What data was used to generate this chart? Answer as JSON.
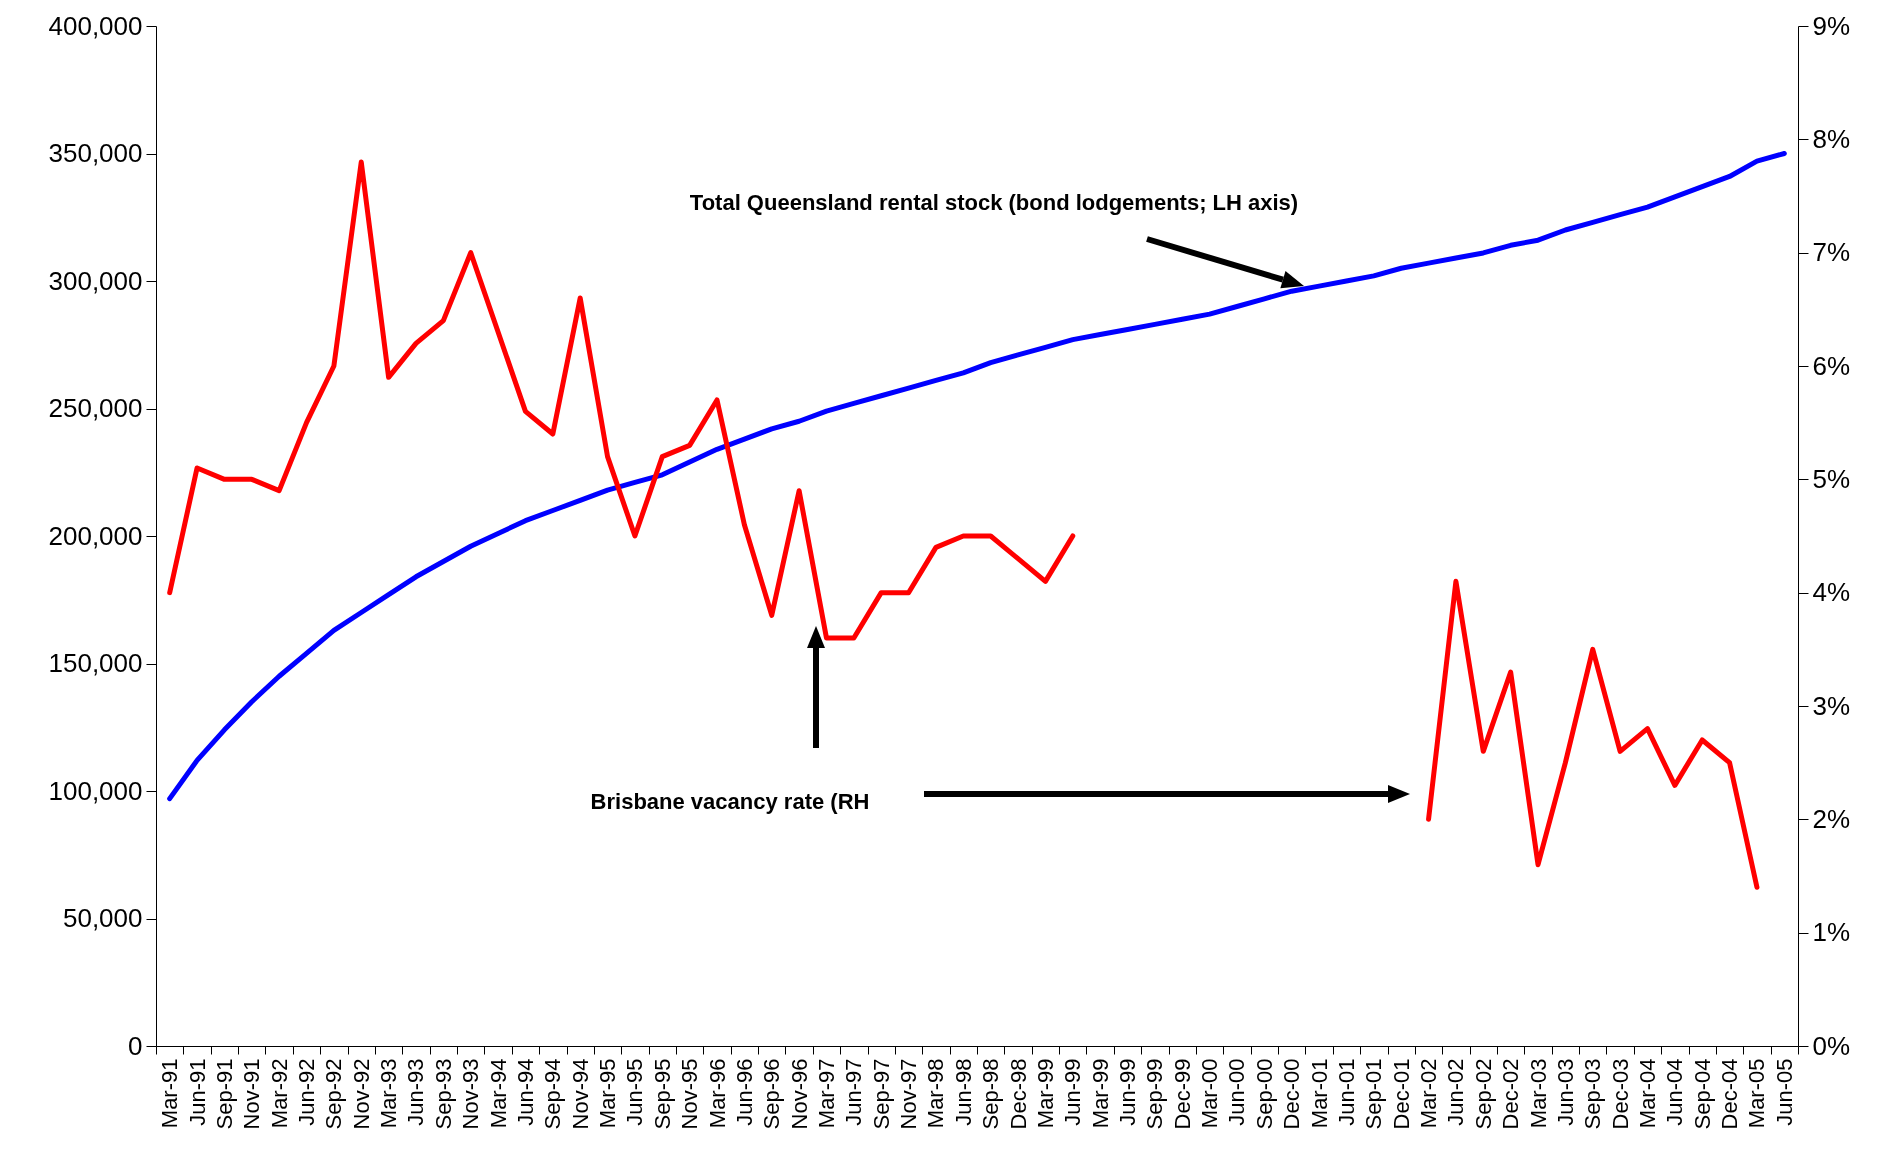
{
  "chart_data": {
    "type": "line",
    "categories": [
      "Mar-91",
      "Jun-91",
      "Sep-91",
      "Nov-91",
      "Mar-92",
      "Jun-92",
      "Sep-92",
      "Nov-92",
      "Mar-93",
      "Jun-93",
      "Sep-93",
      "Nov-93",
      "Mar-94",
      "Jun-94",
      "Sep-94",
      "Nov-94",
      "Mar-95",
      "Jun-95",
      "Sep-95",
      "Nov-95",
      "Mar-96",
      "Jun-96",
      "Sep-96",
      "Nov-96",
      "Mar-97",
      "Jun-97",
      "Sep-97",
      "Nov-97",
      "Mar-98",
      "Jun-98",
      "Sep-98",
      "Dec-98",
      "Mar-99",
      "Jun-99",
      "Mar-99",
      "Jun-99",
      "Sep-99",
      "Dec-99",
      "Mar-00",
      "Jun-00",
      "Sep-00",
      "Dec-00",
      "Mar-01",
      "Jun-01",
      "Sep-01",
      "Dec-01",
      "Mar-02",
      "Jun-02",
      "Sep-02",
      "Dec-02",
      "Mar-03",
      "Jun-03",
      "Sep-03",
      "Dec-03",
      "Mar-04",
      "Jun-04",
      "Sep-04",
      "Dec-04",
      "Mar-05",
      "Jun-05"
    ],
    "series": [
      {
        "color": "#0000ff",
        "values": [
          97000,
          112000,
          124000,
          135000,
          145000,
          154000,
          163000,
          170000,
          177000,
          184000,
          190000,
          196000,
          201000,
          206000,
          210000,
          214000,
          218000,
          221000,
          224000,
          229000,
          234000,
          238000,
          242000,
          245000,
          249000,
          252000,
          255000,
          258000,
          261000,
          264000,
          268000,
          271000,
          274000,
          277000,
          279000,
          281000,
          283000,
          285000,
          287000,
          290000,
          293000,
          296000,
          298000,
          300000,
          302000,
          305000,
          307000,
          309000,
          311000,
          314000,
          316000,
          320000,
          323000,
          326000,
          329000,
          333000,
          337000,
          341000,
          347000,
          350000
        ]
      },
      {
        "color": "#ff0000",
        "axis": "y2",
        "values": [
          4.0,
          5.1,
          5.0,
          5.0,
          4.9,
          5.5,
          6.0,
          7.8,
          5.9,
          6.2,
          6.4,
          7.0,
          6.3,
          5.6,
          5.4,
          6.6,
          5.2,
          4.5,
          5.2,
          5.3,
          5.7,
          4.6,
          3.8,
          4.9,
          3.6,
          3.6,
          4.0,
          4.0,
          4.4,
          4.5,
          4.5,
          4.3,
          4.1,
          4.5,
          null,
          null,
          null,
          null,
          null,
          null,
          null,
          null,
          null,
          null,
          null,
          null,
          2.0,
          4.1,
          2.6,
          3.3,
          1.6,
          2.5,
          3.5,
          2.6,
          2.8,
          2.3,
          2.7,
          2.5,
          1.4,
          null
        ]
      }
    ],
    "annotations": [
      "Total Queensland rental stock (bond lodgements; LH axis)",
      "Brisbane vacancy rate (RH"
    ],
    "ylim": [
      0,
      400000
    ],
    "yticks": [
      {
        "value": 0,
        "label": "0"
      },
      {
        "value": 50000,
        "label": "50,000"
      },
      {
        "value": 100000,
        "label": "100,000"
      },
      {
        "value": 150000,
        "label": "150,000"
      },
      {
        "value": 200000,
        "label": "200,000"
      },
      {
        "value": 250000,
        "label": "250,000"
      },
      {
        "value": 300000,
        "label": "300,000"
      },
      {
        "value": 350000,
        "label": "350,000"
      },
      {
        "value": 400000,
        "label": "400,000"
      }
    ],
    "y2lim": [
      0,
      9
    ],
    "y2ticks": [
      {
        "value": 0,
        "label": "0%"
      },
      {
        "value": 1,
        "label": "1%"
      },
      {
        "value": 2,
        "label": "2%"
      },
      {
        "value": 3,
        "label": "3%"
      },
      {
        "value": 4,
        "label": "4%"
      },
      {
        "value": 5,
        "label": "5%"
      },
      {
        "value": 6,
        "label": "6%"
      },
      {
        "value": 7,
        "label": "7%"
      },
      {
        "value": 8,
        "label": "8%"
      },
      {
        "value": 9,
        "label": "9%"
      }
    ]
  }
}
